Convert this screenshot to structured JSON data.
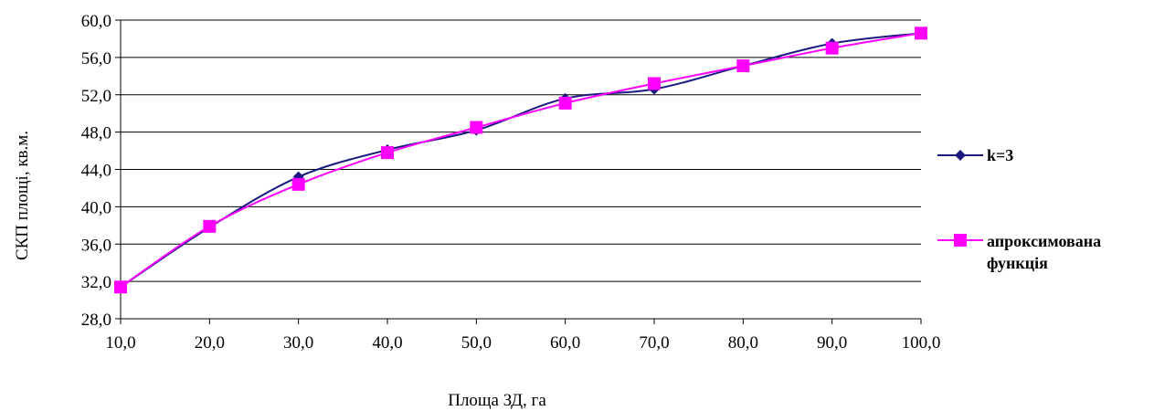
{
  "chart_data": {
    "type": "line",
    "title": "",
    "xlabel": "Площа ЗД, га",
    "ylabel": "СКП площі, кв.м.",
    "x": [
      10,
      20,
      30,
      40,
      50,
      60,
      70,
      80,
      90,
      100
    ],
    "x_tick_labels": [
      "10,0",
      "20,0",
      "30,0",
      "40,0",
      "50,0",
      "60,0",
      "70,0",
      "80,0",
      "90,0",
      "100,0"
    ],
    "ylim": [
      28,
      60
    ],
    "y_ticks": [
      28,
      32,
      36,
      40,
      44,
      48,
      52,
      56,
      60
    ],
    "y_tick_labels": [
      "28,0",
      "32,0",
      "36,0",
      "40,0",
      "44,0",
      "48,0",
      "52,0",
      "56,0",
      "60,0"
    ],
    "grid": true,
    "legend_position": "right",
    "series": [
      {
        "name": "k=3",
        "color": "#1a1a80",
        "marker": "diamond",
        "values": [
          31.4,
          37.8,
          43.2,
          46.1,
          48.2,
          51.6,
          52.6,
          55.1,
          57.5,
          58.6
        ]
      },
      {
        "name": "апроксимована функція",
        "name_lines": [
          "апроксимована",
          "функція"
        ],
        "color": "#ff00ff",
        "marker": "square",
        "values": [
          31.4,
          37.9,
          42.4,
          45.8,
          48.5,
          51.1,
          53.2,
          55.1,
          57.0,
          58.6
        ]
      }
    ]
  }
}
